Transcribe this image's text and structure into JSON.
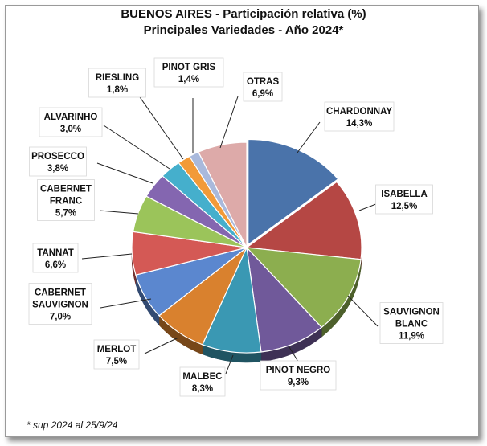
{
  "chart_data": {
    "type": "pie",
    "title": "BUENOS AIRES - Participación relativa (%)",
    "subtitle": "Principales Variedades  - Año 2024*",
    "slices": [
      {
        "label_lines": [
          "CHARDONNAY"
        ],
        "value_label": "14,3%",
        "value": 14.3,
        "color": "#4a73aa"
      },
      {
        "label_lines": [
          "ISABELLA"
        ],
        "value_label": "12,5%",
        "value": 12.5,
        "color": "#b54744"
      },
      {
        "label_lines": [
          "SAUVIGNON",
          "BLANC"
        ],
        "value_label": "11,9%",
        "value": 11.9,
        "color": "#8cae4f"
      },
      {
        "label_lines": [
          "PINOT NEGRO"
        ],
        "value_label": "9,3%",
        "value": 9.3,
        "color": "#70599a"
      },
      {
        "label_lines": [
          "MALBEC"
        ],
        "value_label": "8,3%",
        "value": 8.3,
        "color": "#3a98b3"
      },
      {
        "label_lines": [
          "MERLOT"
        ],
        "value_label": "7,5%",
        "value": 7.5,
        "color": "#d9812e"
      },
      {
        "label_lines": [
          "CABERNET",
          "SAUVIGNON"
        ],
        "value_label": "7,0%",
        "value": 7.0,
        "color": "#5b87cf"
      },
      {
        "label_lines": [
          "TANNAT"
        ],
        "value_label": "6,6%",
        "value": 6.6,
        "color": "#d45955"
      },
      {
        "label_lines": [
          "CABERNET",
          "FRANC"
        ],
        "value_label": "5,7%",
        "value": 5.7,
        "color": "#9bc45a"
      },
      {
        "label_lines": [
          "PROSECCO"
        ],
        "value_label": "3,8%",
        "value": 3.8,
        "color": "#8466b0"
      },
      {
        "label_lines": [
          "ALVARINHO"
        ],
        "value_label": "3,0%",
        "value": 3.0,
        "color": "#45afcc"
      },
      {
        "label_lines": [
          "RIESLING"
        ],
        "value_label": "1,8%",
        "value": 1.8,
        "color": "#f29a38"
      },
      {
        "label_lines": [
          "PINOT GRIS"
        ],
        "value_label": "1,4%",
        "value": 1.4,
        "color": "#a9b9dc"
      },
      {
        "label_lines": [
          "OTRAS"
        ],
        "value_label": "6,9%",
        "value": 6.9,
        "color": "#ddaaa9"
      }
    ]
  },
  "footnote": "* sup 2024 al 25/9/24"
}
